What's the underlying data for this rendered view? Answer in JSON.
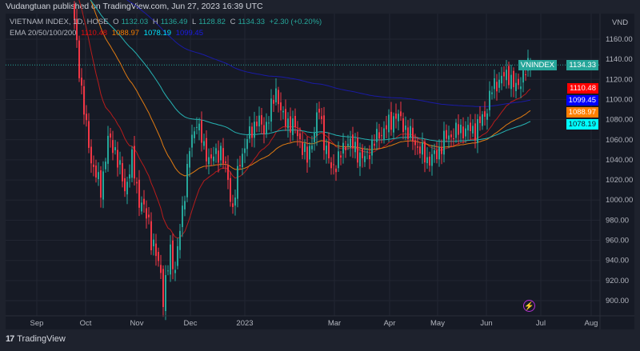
{
  "header": {
    "published": "Vudangtuan published on TradingView.com, Jun 27, 2023 16:39 UTC"
  },
  "legend": {
    "symbol": "VIETNAM INDEX, 1D, HOSE",
    "o_label": "O",
    "o": "1132.03",
    "h_label": "H",
    "h": "1136.49",
    "l_label": "L",
    "l": "1128.82",
    "c_label": "C",
    "c": "1134.33",
    "change": "+2.30 (+0.20%)",
    "ema_label": "EMA 20/50/100/200",
    "ema20": "1110.48",
    "ema50": "1088.97",
    "ema100": "1078.19",
    "ema200": "1099.45"
  },
  "price_axis": {
    "currency": "VND",
    "ticks": [
      "1160.00",
      "1140.00",
      "1120.00",
      "1100.00",
      "1080.00",
      "1060.00",
      "1040.00",
      "1020.00",
      "1000.00",
      "980.00",
      "960.00",
      "940.00",
      "920.00",
      "900.00"
    ]
  },
  "time_axis": {
    "ticks": [
      "Sep",
      "Oct",
      "Nov",
      "Dec",
      "2023",
      "Mar",
      "Apr",
      "May",
      "Jun",
      "Jul",
      "Aug"
    ]
  },
  "labels": {
    "symbol_badge": "VNINDEX",
    "last": "1134.33",
    "ema20": "1110.48",
    "ema200": "1099.45",
    "ema50": "1088.97",
    "ema100": "1078.19"
  },
  "colors": {
    "up": "#26a69a",
    "down": "#f23645",
    "ema20": "#e00d0d",
    "ema50": "#f57c00",
    "ema100": "#00bcd4",
    "ema200": "#1a1ae6",
    "bg": "#161a25"
  },
  "footer": {
    "brand": "TradingView",
    "logo": "17"
  },
  "chart_data": {
    "type": "candlestick",
    "title": "VIETNAM INDEX, 1D, HOSE",
    "ylim": [
      890,
      1170
    ],
    "close_anchors": [
      [
        0,
        1180
      ],
      [
        2,
        1130
      ],
      [
        5,
        1070
      ],
      [
        7,
        1040
      ],
      [
        11,
        1010
      ],
      [
        14,
        1060
      ],
      [
        17,
        1050
      ],
      [
        21,
        1010
      ],
      [
        24,
        1040
      ],
      [
        27,
        1000
      ],
      [
        31,
        980
      ],
      [
        32,
        960
      ],
      [
        36,
        930
      ],
      [
        37,
        900
      ],
      [
        40,
        950
      ],
      [
        42,
        930
      ],
      [
        45,
        990
      ],
      [
        48,
        1050
      ],
      [
        51,
        1080
      ],
      [
        54,
        1050
      ],
      [
        57,
        1040
      ],
      [
        61,
        1050
      ],
      [
        64,
        1020
      ],
      [
        66,
        990
      ],
      [
        69,
        1040
      ],
      [
        72,
        1060
      ],
      [
        76,
        1080
      ],
      [
        79,
        1070
      ],
      [
        82,
        1090
      ],
      [
        84,
        1110
      ],
      [
        87,
        1080
      ],
      [
        91,
        1075
      ],
      [
        94,
        1060
      ],
      [
        97,
        1040
      ],
      [
        99,
        1060
      ],
      [
        102,
        1090
      ],
      [
        104,
        1060
      ],
      [
        107,
        1030
      ],
      [
        111,
        1045
      ],
      [
        114,
        1060
      ],
      [
        117,
        1050
      ],
      [
        121,
        1040
      ],
      [
        124,
        1055
      ],
      [
        127,
        1065
      ],
      [
        131,
        1075
      ],
      [
        134,
        1085
      ],
      [
        137,
        1075
      ],
      [
        141,
        1060
      ],
      [
        144,
        1050
      ],
      [
        147,
        1040
      ],
      [
        151,
        1045
      ],
      [
        154,
        1060
      ],
      [
        157,
        1065
      ],
      [
        161,
        1070
      ],
      [
        164,
        1070
      ],
      [
        167,
        1070
      ],
      [
        171,
        1085
      ],
      [
        174,
        1110
      ],
      [
        177,
        1120
      ],
      [
        181,
        1125
      ],
      [
        184,
        1110
      ],
      [
        187,
        1125
      ],
      [
        190,
        1134.33
      ]
    ],
    "ema_seeds": {
      "ema20": 1215,
      "ema50": 1235,
      "ema100": 1215,
      "ema200": 1235
    },
    "ema_final": {
      "ema20": 1110.48,
      "ema50": 1088.97,
      "ema100": 1078.19,
      "ema200": 1099.45
    }
  }
}
